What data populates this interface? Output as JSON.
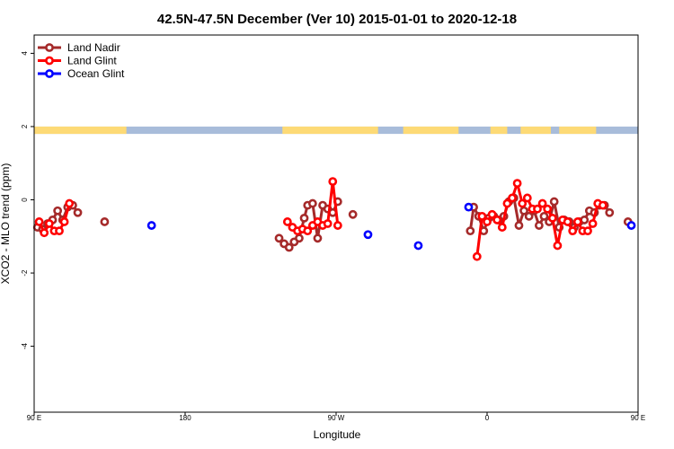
{
  "chart_data": {
    "type": "line",
    "title": "42.5N-47.5N December (Ver 10)   2015-01-01 to 2020-12-18",
    "xlabel": "Longitude",
    "ylabel": "XCO2 - MLO trend (ppm)",
    "xlim": [
      90,
      450
    ],
    "ylim": [
      -5.8,
      4.5
    ],
    "grid": false,
    "legend_placement": "top-left",
    "x_ticks": [
      {
        "value": 90,
        "label": "90 E"
      },
      {
        "value": 180,
        "label": "180"
      },
      {
        "value": 270,
        "label": "90 W"
      },
      {
        "value": 360,
        "label": "0"
      },
      {
        "value": 450,
        "label": "90 E"
      },
      {
        "value": 540,
        "label": "180"
      }
    ],
    "y_ticks": [
      {
        "value": 4,
        "label": "4"
      },
      {
        "value": 2,
        "label": "2"
      },
      {
        "value": 0,
        "label": "0"
      },
      {
        "value": -2,
        "label": "-2"
      },
      {
        "value": -4,
        "label": "-4"
      }
    ],
    "land_mask": {
      "y_range": [
        1.8,
        2.0
      ],
      "land_color": "#FDDA76",
      "ocean_color": "#A8BCDA",
      "land_intervals": [
        [
          90,
          145
        ],
        [
          238,
          295
        ],
        [
          310,
          343
        ],
        [
          362,
          372
        ],
        [
          380,
          398
        ],
        [
          403,
          425
        ],
        [
          455,
          497
        ],
        [
          497,
          520
        ]
      ]
    },
    "series": [
      {
        "name": "Land Nadir",
        "color": "#A52A2A",
        "points": [
          [
            92,
            -0.75
          ],
          [
            95,
            -0.8
          ],
          [
            98,
            -0.65
          ],
          [
            101,
            -0.55
          ],
          [
            104,
            -0.3
          ],
          [
            107,
            -0.55
          ],
          [
            110,
            -0.2
          ],
          [
            113,
            -0.15
          ],
          [
            116,
            -0.35
          ],
          [
            132,
            -0.6
          ],
          [
            236,
            -1.05
          ],
          [
            239,
            -1.2
          ],
          [
            242,
            -1.3
          ],
          [
            245,
            -1.15
          ],
          [
            248,
            -1.05
          ],
          [
            251,
            -0.5
          ],
          [
            253,
            -0.15
          ],
          [
            256,
            -0.1
          ],
          [
            259,
            -1.05
          ],
          [
            262,
            -0.15
          ],
          [
            265,
            -0.25
          ],
          [
            268,
            -0.35
          ],
          [
            271,
            -0.05
          ],
          [
            280,
            -0.4
          ],
          [
            350,
            -0.85
          ],
          [
            352,
            -0.2
          ],
          [
            355,
            -0.45
          ],
          [
            358,
            -0.85
          ],
          [
            361,
            -0.5
          ],
          [
            364,
            -0.45
          ],
          [
            367,
            -0.55
          ],
          [
            370,
            -0.45
          ],
          [
            373,
            -0.05
          ],
          [
            376,
            0.05
          ],
          [
            379,
            -0.7
          ],
          [
            382,
            -0.3
          ],
          [
            385,
            -0.45
          ],
          [
            388,
            -0.3
          ],
          [
            391,
            -0.7
          ],
          [
            394,
            -0.45
          ],
          [
            397,
            -0.6
          ],
          [
            400,
            -0.05
          ],
          [
            403,
            -0.75
          ],
          [
            406,
            -0.55
          ],
          [
            409,
            -0.6
          ],
          [
            412,
            -0.75
          ],
          [
            415,
            -0.6
          ],
          [
            418,
            -0.55
          ],
          [
            421,
            -0.3
          ],
          [
            424,
            -0.35
          ],
          [
            427,
            -0.15
          ],
          [
            430,
            -0.15
          ],
          [
            433,
            -0.35
          ],
          [
            444,
            -0.6
          ]
        ]
      },
      {
        "name": "Land Glint",
        "color": "#FF0000",
        "points": [
          [
            93,
            -0.6
          ],
          [
            96,
            -0.9
          ],
          [
            99,
            -0.65
          ],
          [
            102,
            -0.85
          ],
          [
            105,
            -0.85
          ],
          [
            108,
            -0.6
          ],
          [
            111,
            -0.1
          ],
          [
            241,
            -0.6
          ],
          [
            244,
            -0.75
          ],
          [
            247,
            -0.85
          ],
          [
            250,
            -0.8
          ],
          [
            253,
            -0.85
          ],
          [
            256,
            -0.7
          ],
          [
            259,
            -0.6
          ],
          [
            262,
            -0.7
          ],
          [
            265,
            -0.65
          ],
          [
            268,
            0.5
          ],
          [
            271,
            -0.7
          ],
          [
            354,
            -1.55
          ],
          [
            357,
            -0.45
          ],
          [
            360,
            -0.6
          ],
          [
            363,
            -0.4
          ],
          [
            366,
            -0.55
          ],
          [
            369,
            -0.75
          ],
          [
            372,
            -0.1
          ],
          [
            375,
            0.05
          ],
          [
            378,
            0.45
          ],
          [
            381,
            -0.1
          ],
          [
            384,
            0.05
          ],
          [
            387,
            -0.25
          ],
          [
            390,
            -0.25
          ],
          [
            393,
            -0.1
          ],
          [
            396,
            -0.25
          ],
          [
            399,
            -0.5
          ],
          [
            402,
            -1.25
          ],
          [
            405,
            -0.55
          ],
          [
            408,
            -0.6
          ],
          [
            411,
            -0.85
          ],
          [
            414,
            -0.6
          ],
          [
            417,
            -0.85
          ],
          [
            420,
            -0.85
          ],
          [
            423,
            -0.65
          ],
          [
            426,
            -0.1
          ],
          [
            429,
            -0.15
          ]
        ]
      },
      {
        "name": "Ocean Glint",
        "color": "#0000FF",
        "points": [
          [
            160,
            -0.7
          ],
          [
            289,
            -0.95
          ],
          [
            319,
            -1.25
          ],
          [
            349,
            -0.2
          ],
          [
            446,
            -0.7
          ]
        ]
      }
    ]
  }
}
